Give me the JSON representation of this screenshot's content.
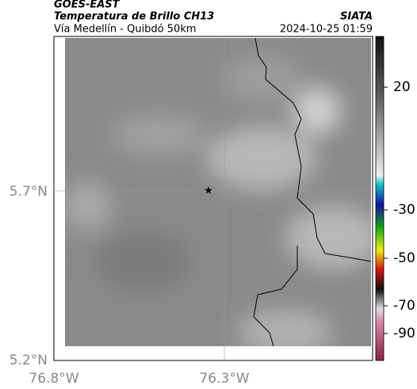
{
  "header": {
    "source": "GOES-EAST",
    "title": "Temperatura de Brillo CH13",
    "subtitle": "Vía Medellín - Quibdó 50km",
    "org": "SIATA",
    "datetime": "2024-10-25 01:59"
  },
  "map": {
    "lat_labels": [
      "5.7°N",
      "5.2°N"
    ],
    "lon_labels": [
      "76.8°W",
      "76.3°W"
    ]
  },
  "colorbar": {
    "ticks": [
      20,
      -30,
      -50,
      -70,
      -90
    ]
  }
}
